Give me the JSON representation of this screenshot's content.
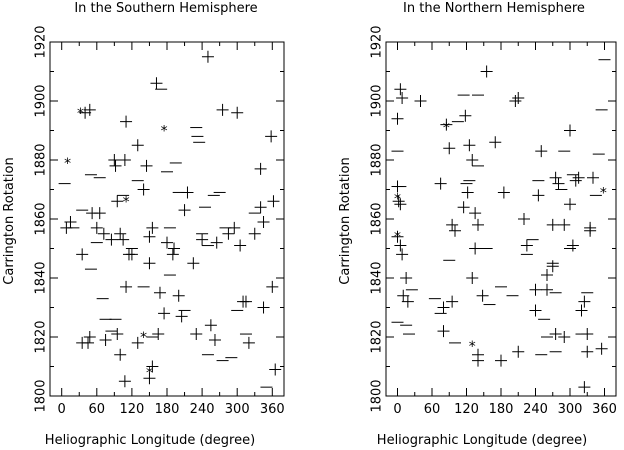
{
  "chart_data": [
    {
      "type": "scatter",
      "title": "In the Southern Hemisphere",
      "xlabel": "Heliographic Longitude (degree)",
      "ylabel": "Carrington Rotation",
      "xlim": [
        -20,
        380
      ],
      "ylim": [
        1800,
        1920
      ],
      "xticks": [
        0,
        60,
        120,
        180,
        240,
        300,
        360
      ],
      "xtick_minor": [
        30,
        90,
        150,
        210,
        270,
        330
      ],
      "yticks": [
        1800,
        1820,
        1840,
        1860,
        1880,
        1900,
        1920
      ],
      "legend": "none",
      "grid": false,
      "symbols": {
        "plus": "+",
        "dash": "-",
        "star": "*"
      },
      "series": [
        {
          "symbol": "plus",
          "points": [
            [
              8,
              1857
            ],
            [
              15,
              1859
            ],
            [
              35,
              1848
            ],
            [
              40,
              1896
            ],
            [
              48,
              1897
            ],
            [
              60,
              1857
            ],
            [
              52,
              1862
            ],
            [
              65,
              1862
            ],
            [
              72,
              1855
            ],
            [
              85,
              1853
            ],
            [
              92,
              1878
            ],
            [
              90,
              1880
            ],
            [
              95,
              1866
            ],
            [
              100,
              1855
            ],
            [
              105,
              1853
            ],
            [
              110,
              1893
            ],
            [
              108,
              1880
            ],
            [
              115,
              1848
            ],
            [
              120,
              1848
            ],
            [
              130,
              1885
            ],
            [
              140,
              1870
            ],
            [
              145,
              1878
            ],
            [
              150,
              1845
            ],
            [
              150,
              1854
            ],
            [
              155,
              1857
            ],
            [
              162,
              1906
            ],
            [
              168,
              1835
            ],
            [
              175,
              1828
            ],
            [
              165,
              1821
            ],
            [
              180,
              1852
            ],
            [
              190,
              1848
            ],
            [
              192,
              1850
            ],
            [
              200,
              1834
            ],
            [
              205,
              1827
            ],
            [
              210,
              1863
            ],
            [
              215,
              1869
            ],
            [
              225,
              1845
            ],
            [
              230,
              1821
            ],
            [
              240,
              1853
            ],
            [
              250,
              1915
            ],
            [
              255,
              1824
            ],
            [
              262,
              1819
            ],
            [
              265,
              1852
            ],
            [
              275,
              1897
            ],
            [
              285,
              1855
            ],
            [
              295,
              1857
            ],
            [
              300,
              1896
            ],
            [
              305,
              1851
            ],
            [
              310,
              1832
            ],
            [
              315,
              1832
            ],
            [
              320,
              1818
            ],
            [
              330,
              1855
            ],
            [
              340,
              1864
            ],
            [
              340,
              1877
            ],
            [
              345,
              1859
            ],
            [
              358,
              1888
            ],
            [
              362,
              1866
            ],
            [
              360,
              1837
            ],
            [
              365,
              1809
            ],
            [
              45,
              1818
            ],
            [
              48,
              1820
            ],
            [
              35,
              1818
            ],
            [
              75,
              1819
            ],
            [
              95,
              1821
            ],
            [
              100,
              1814
            ],
            [
              108,
              1805
            ],
            [
              130,
              1818
            ],
            [
              150,
              1806
            ],
            [
              155,
              1810
            ],
            [
              110,
              1837
            ],
            [
              345,
              1830
            ]
          ]
        },
        {
          "symbol": "dash",
          "points": [
            [
              5,
              1872
            ],
            [
              35,
              1863
            ],
            [
              50,
              1875
            ],
            [
              65,
              1874
            ],
            [
              70,
              1833
            ],
            [
              75,
              1826
            ],
            [
              85,
              1822
            ],
            [
              105,
              1868
            ],
            [
              130,
              1873
            ],
            [
              140,
              1837
            ],
            [
              155,
              1820
            ],
            [
              170,
              1904
            ],
            [
              185,
              1857
            ],
            [
              195,
              1879
            ],
            [
              185,
              1841
            ],
            [
              200,
              1869
            ],
            [
              230,
              1891
            ],
            [
              232,
              1888
            ],
            [
              235,
              1886
            ],
            [
              245,
              1864
            ],
            [
              250,
              1851
            ],
            [
              250,
              1814
            ],
            [
              260,
              1868
            ],
            [
              270,
              1869
            ],
            [
              275,
              1812
            ],
            [
              290,
              1813
            ],
            [
              300,
              1829
            ],
            [
              315,
              1821
            ],
            [
              330,
              1862
            ],
            [
              350,
              1803
            ],
            [
              210,
              1829
            ],
            [
              180,
              1876
            ],
            [
              50,
              1843
            ],
            [
              92,
              1826
            ],
            [
              60,
              1852
            ],
            [
              20,
              1857
            ],
            [
              120,
              1850
            ],
            [
              240,
              1855
            ],
            [
              280,
              1857
            ]
          ]
        },
        {
          "symbol": "star",
          "points": [
            [
              10,
              1879
            ],
            [
              32,
              1896
            ],
            [
              110,
              1866
            ],
            [
              140,
              1820
            ],
            [
              150,
              1808
            ],
            [
              175,
              1890
            ]
          ]
        }
      ]
    },
    {
      "type": "scatter",
      "title": "In the Northern Hemisphere",
      "xlabel": "Heliographic Longitude (degree)",
      "ylabel": "Carrington Rotation",
      "xlim": [
        -20,
        380
      ],
      "ylim": [
        1800,
        1920
      ],
      "xticks": [
        0,
        60,
        120,
        180,
        240,
        300,
        360
      ],
      "xtick_minor": [
        30,
        90,
        150,
        210,
        270,
        330
      ],
      "yticks": [
        1800,
        1820,
        1840,
        1860,
        1880,
        1900,
        1920
      ],
      "legend": "none",
      "grid": false,
      "symbols": {
        "plus": "+",
        "dash": "-",
        "star": "*"
      },
      "series": [
        {
          "symbol": "plus",
          "points": [
            [
              5,
              1904
            ],
            [
              8,
              1901
            ],
            [
              0,
              1894
            ],
            [
              0,
              1871
            ],
            [
              2,
              1866
            ],
            [
              5,
              1865
            ],
            [
              0,
              1854
            ],
            [
              5,
              1851
            ],
            [
              8,
              1848
            ],
            [
              10,
              1834
            ],
            [
              15,
              1840
            ],
            [
              18,
              1832
            ],
            [
              40,
              1900
            ],
            [
              75,
              1872
            ],
            [
              85,
              1892
            ],
            [
              90,
              1884
            ],
            [
              95,
              1858
            ],
            [
              100,
              1856
            ],
            [
              115,
              1864
            ],
            [
              122,
              1869
            ],
            [
              118,
              1895
            ],
            [
              125,
              1885
            ],
            [
              130,
              1880
            ],
            [
              135,
              1862
            ],
            [
              135,
              1850
            ],
            [
              148,
              1834
            ],
            [
              155,
              1910
            ],
            [
              170,
              1886
            ],
            [
              185,
              1869
            ],
            [
              205,
              1900
            ],
            [
              210,
              1901
            ],
            [
              220,
              1860
            ],
            [
              225,
              1851
            ],
            [
              240,
              1836
            ],
            [
              245,
              1868
            ],
            [
              250,
              1883
            ],
            [
              260,
              1841
            ],
            [
              260,
              1836
            ],
            [
              270,
              1844
            ],
            [
              275,
              1874
            ],
            [
              280,
              1872
            ],
            [
              290,
              1858
            ],
            [
              300,
              1890
            ],
            [
              305,
              1851
            ],
            [
              315,
              1874
            ],
            [
              320,
              1829
            ],
            [
              325,
              1832
            ],
            [
              330,
              1821
            ],
            [
              335,
              1857
            ],
            [
              330,
              1815
            ],
            [
              355,
              1816
            ],
            [
              340,
              1874
            ],
            [
              325,
              1803
            ],
            [
              240,
              1829
            ],
            [
              275,
              1821
            ],
            [
              290,
              1820
            ],
            [
              80,
              1830
            ],
            [
              80,
              1822
            ],
            [
              95,
              1832
            ],
            [
              140,
              1814
            ],
            [
              140,
              1812
            ],
            [
              180,
              1812
            ],
            [
              210,
              1815
            ],
            [
              130,
              1840
            ],
            [
              140,
              1858
            ],
            [
              270,
              1858
            ],
            [
              335,
              1856
            ],
            [
              300,
              1865
            ],
            [
              310,
              1873
            ]
          ]
        },
        {
          "symbol": "dash",
          "points": [
            [
              0,
              1883
            ],
            [
              5,
              1871
            ],
            [
              0,
              1825
            ],
            [
              15,
              1824
            ],
            [
              20,
              1821
            ],
            [
              25,
              1836
            ],
            [
              65,
              1833
            ],
            [
              75,
              1828
            ],
            [
              90,
              1846
            ],
            [
              105,
              1893
            ],
            [
              115,
              1902
            ],
            [
              120,
              1872
            ],
            [
              125,
              1873
            ],
            [
              140,
              1878
            ],
            [
              140,
              1902
            ],
            [
              155,
              1850
            ],
            [
              160,
              1831
            ],
            [
              180,
              1837
            ],
            [
              200,
              1834
            ],
            [
              225,
              1848
            ],
            [
              235,
              1853
            ],
            [
              245,
              1873
            ],
            [
              255,
              1826
            ],
            [
              260,
              1820
            ],
            [
              270,
              1845
            ],
            [
              275,
              1835
            ],
            [
              285,
              1870
            ],
            [
              290,
              1883
            ],
            [
              300,
              1850
            ],
            [
              305,
              1875
            ],
            [
              320,
              1821
            ],
            [
              330,
              1835
            ],
            [
              345,
              1868
            ],
            [
              350,
              1882
            ],
            [
              355,
              1897
            ],
            [
              360,
              1914
            ],
            [
              250,
              1814
            ],
            [
              275,
              1815
            ],
            [
              100,
              1818
            ]
          ]
        },
        {
          "symbol": "star",
          "points": [
            [
              0,
              1867
            ],
            [
              0,
              1854
            ],
            [
              85,
              1891
            ],
            [
              130,
              1817
            ],
            [
              358,
              1869
            ]
          ]
        }
      ]
    }
  ]
}
